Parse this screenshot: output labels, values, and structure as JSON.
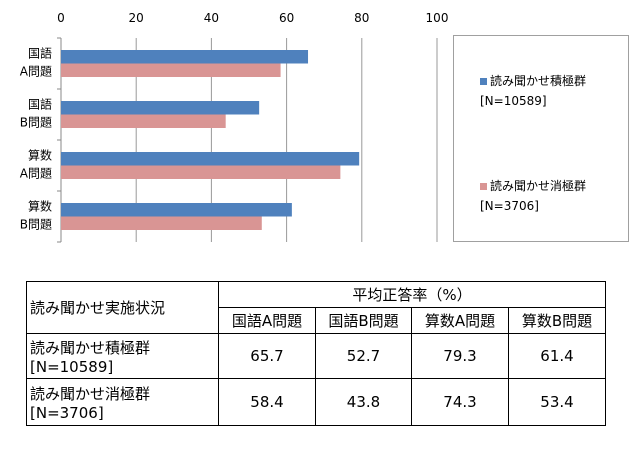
{
  "chart_data": {
    "type": "bar",
    "orientation": "horizontal",
    "categories": [
      "国語\nA問題",
      "国語\nB問題",
      "算数\nA問題",
      "算数\nB問題"
    ],
    "category_lines": [
      [
        "国語",
        "A問題"
      ],
      [
        "国語",
        "B問題"
      ],
      [
        "算数",
        "A問題"
      ],
      [
        "算数",
        "B問題"
      ]
    ],
    "series": [
      {
        "name": "読み聞かせ積極群",
        "name_line2": "[N=10589]",
        "color": "#4f81bd",
        "values": [
          65.7,
          52.7,
          79.3,
          61.4
        ]
      },
      {
        "name": "読み聞かせ消極群",
        "name_line2": "[N=3706]",
        "color": "#d99594",
        "values": [
          58.4,
          43.8,
          74.3,
          53.4
        ]
      }
    ],
    "xlim": [
      0,
      100
    ],
    "xticks": [
      "0",
      "20",
      "40",
      "60",
      "80",
      "100"
    ],
    "xunit": "(%)",
    "grid": true,
    "legend": "right"
  },
  "table": {
    "corner": "読み聞かせ実施状況",
    "group_header": "平均正答率（%）",
    "columns": [
      "国語A問題",
      "国語B問題",
      "算数A問題",
      "算数B問題"
    ],
    "rows": [
      {
        "label": "読み聞かせ積極群",
        "label2": "[N=10589]",
        "values": [
          "65.7",
          "52.7",
          "79.3",
          "61.4"
        ]
      },
      {
        "label": "読み聞かせ消極群",
        "label2": "[N=3706]",
        "values": [
          "58.4",
          "43.8",
          "74.3",
          "53.4"
        ]
      }
    ]
  }
}
